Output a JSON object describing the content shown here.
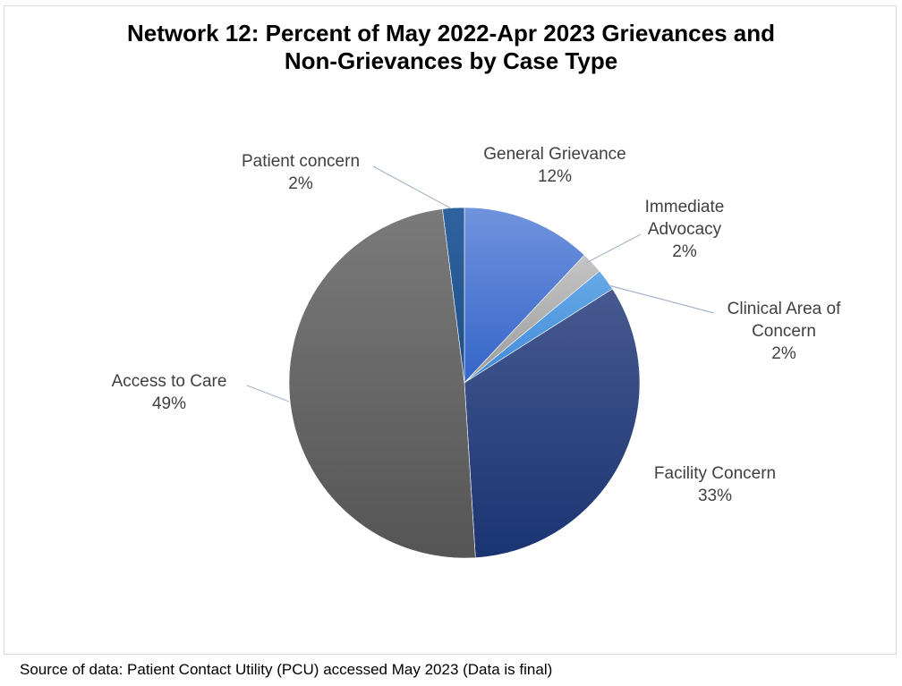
{
  "chart_data": {
    "type": "pie",
    "title_lines": [
      "Network 12:  Percent of May 2022-Apr 2023 Grievances and",
      "Non-Grievances by Case Type"
    ],
    "slices": [
      {
        "label_lines": [
          "General Grievance"
        ],
        "value": 12,
        "display": "12%",
        "color_light": "#6f93dd",
        "color_dark": "#3565c9"
      },
      {
        "label_lines": [
          "Immediate",
          "Advocacy"
        ],
        "value": 2,
        "display": "2%",
        "color_light": "#c4c4c4",
        "color_dark": "#9c9c9c"
      },
      {
        "label_lines": [
          "Clinical Area of",
          "Concern"
        ],
        "value": 2,
        "display": "2%",
        "color_light": "#67a9e8",
        "color_dark": "#3f8ad8"
      },
      {
        "label_lines": [
          "Facility Concern"
        ],
        "value": 33,
        "display": "33%",
        "color_light": "#47598f",
        "color_dark": "#1a3472"
      },
      {
        "label_lines": [
          "Access to Care"
        ],
        "value": 49,
        "display": "49%",
        "color_light": "#7a7a7a",
        "color_dark": "#555555"
      },
      {
        "label_lines": [
          "Patient concern"
        ],
        "value": 2,
        "display": "2%",
        "color_light": "#2f63a0",
        "color_dark": "#1e4d86"
      }
    ],
    "start_at": "top",
    "direction": "clockwise",
    "legend": "none"
  },
  "footer": {
    "source": "Source of data:  Patient Contact Utility (PCU) accessed May 2023 (Data is final)"
  }
}
